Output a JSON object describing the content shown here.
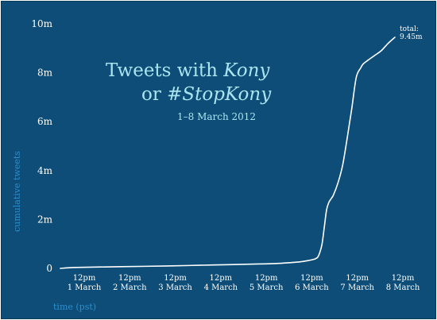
{
  "chart_data": {
    "type": "line",
    "title_parts": {
      "line1_plain": "Tweets with ",
      "line1_italic": "Kony",
      "line2_plain": "or ",
      "line2_italic": "#StopKony"
    },
    "subtitle": "1–8 March 2012",
    "xlabel": "time (pst)",
    "ylabel": "cumulative tweets",
    "ylim": [
      0,
      10000000
    ],
    "yticks": [
      {
        "value": 0,
        "label": "0"
      },
      {
        "value": 2000000,
        "label": "2m"
      },
      {
        "value": 4000000,
        "label": "4m"
      },
      {
        "value": 6000000,
        "label": "6m"
      },
      {
        "value": 8000000,
        "label": "8m"
      },
      {
        "value": 10000000,
        "label": "10m"
      }
    ],
    "xlim": [
      0,
      7
    ],
    "xticks": [
      {
        "value": 0,
        "label_top": "12pm",
        "label_bottom": "1 March"
      },
      {
        "value": 1,
        "label_top": "12pm",
        "label_bottom": "2 March"
      },
      {
        "value": 2,
        "label_top": "12pm",
        "label_bottom": "3 March"
      },
      {
        "value": 3,
        "label_top": "12pm",
        "label_bottom": "4 March"
      },
      {
        "value": 4,
        "label_top": "12pm",
        "label_bottom": "5 March"
      },
      {
        "value": 5,
        "label_top": "12pm",
        "label_bottom": "6 March"
      },
      {
        "value": 6,
        "label_top": "12pm",
        "label_bottom": "7 March"
      },
      {
        "value": 7,
        "label_top": "12pm",
        "label_bottom": "8 March"
      }
    ],
    "series": [
      {
        "x": [
          -0.35,
          0,
          1,
          2,
          3,
          4,
          4.5,
          4.8,
          5.0,
          5.2,
          5.3,
          5.35,
          5.4,
          5.45,
          5.5,
          5.55,
          5.6,
          5.65,
          5.75,
          5.85,
          5.95,
          6.05,
          6.15,
          6.25,
          6.3,
          6.4,
          6.55,
          6.7,
          6.85,
          7.0
        ],
        "y": [
          0,
          40000,
          70000,
          100000,
          140000,
          180000,
          210000,
          250000,
          290000,
          360000,
          450000,
          650000,
          1000000,
          1700000,
          2400000,
          2700000,
          2850000,
          3000000,
          3500000,
          4200000,
          5300000,
          6500000,
          7800000,
          8200000,
          8350000,
          8500000,
          8700000,
          8900000,
          9200000,
          9450000
        ]
      }
    ],
    "annotation": {
      "line1": "total:",
      "line2": "9.45m"
    },
    "grid": false,
    "legend": "none",
    "colors": {
      "background": "#0d4d77",
      "line": "#ffffff",
      "axis_text": "#ffffff",
      "title": "#a9e4ef",
      "axis_label": "#2a8fd0"
    }
  }
}
